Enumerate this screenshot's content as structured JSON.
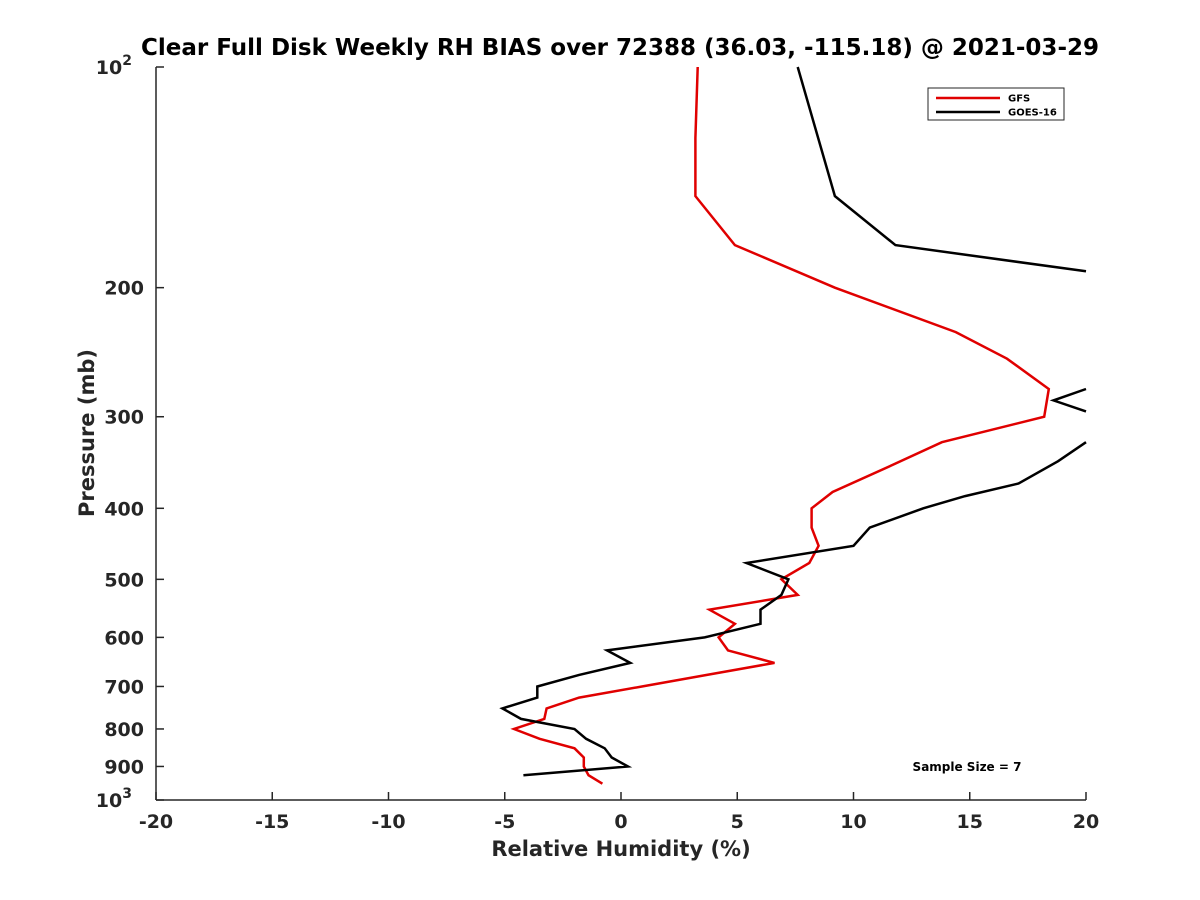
{
  "chart_data": {
    "type": "line",
    "title": "Clear Full Disk Weekly RH BIAS over 72388 (36.03, -115.18) @ 2021-03-29",
    "xlabel": "Relative Humidity (%)",
    "ylabel": "Pressure (mb)",
    "xlim": [
      -20,
      20
    ],
    "ylim": [
      100,
      1000
    ],
    "y_scale": "log",
    "y_reversed": true,
    "grid": false,
    "legend_position": "top-right",
    "x_ticks": [
      "-20",
      "-15",
      "-10",
      "-5",
      "0",
      "5",
      "10",
      "15",
      "20"
    ],
    "y_ticks": [
      {
        "value": 100,
        "base": "10",
        "exp": "2"
      },
      {
        "value": 200,
        "label": "200"
      },
      {
        "value": 300,
        "label": "300"
      },
      {
        "value": 400,
        "label": "400"
      },
      {
        "value": 500,
        "label": "500"
      },
      {
        "value": 600,
        "label": "600"
      },
      {
        "value": 700,
        "label": "700"
      },
      {
        "value": 800,
        "label": "800"
      },
      {
        "value": 900,
        "label": "900"
      },
      {
        "value": 1000,
        "base": "10",
        "exp": "3"
      }
    ],
    "series": [
      {
        "name": "GFS",
        "color": "#e00000",
        "points": [
          [
            3.3,
            100
          ],
          [
            3.2,
            125
          ],
          [
            3.2,
            150
          ],
          [
            4.9,
            175
          ],
          [
            9.2,
            200
          ],
          [
            14.4,
            230
          ],
          [
            16.6,
            250
          ],
          [
            18.4,
            275
          ],
          [
            18.2,
            300
          ],
          [
            13.8,
            325
          ],
          [
            11.6,
            350
          ],
          [
            9.1,
            380
          ],
          [
            8.2,
            400
          ],
          [
            8.2,
            425
          ],
          [
            8.5,
            450
          ],
          [
            8.1,
            475
          ],
          [
            6.9,
            500
          ],
          [
            7.6,
            525
          ],
          [
            3.8,
            550
          ],
          [
            4.9,
            575
          ],
          [
            4.2,
            600
          ],
          [
            4.6,
            625
          ],
          [
            6.6,
            650
          ],
          [
            3.7,
            675
          ],
          [
            0.9,
            700
          ],
          [
            -1.8,
            725
          ],
          [
            -3.2,
            750
          ],
          [
            -3.3,
            775
          ],
          [
            -4.6,
            800
          ],
          [
            -3.5,
            825
          ],
          [
            -2.0,
            850
          ],
          [
            -1.6,
            875
          ],
          [
            -1.6,
            900
          ],
          [
            -1.4,
            925
          ],
          [
            -0.8,
            950
          ]
        ]
      },
      {
        "name": "GOES-16",
        "color": "#000000",
        "segments": [
          [
            [
              7.6,
              100
            ],
            [
              9.2,
              150
            ],
            [
              11.8,
              175
            ],
            [
              20.0,
              190
            ]
          ],
          [
            [
              20.0,
              275
            ],
            [
              18.6,
              285
            ],
            [
              20.0,
              295
            ]
          ],
          [
            [
              20.0,
              325
            ],
            [
              18.8,
              345
            ],
            [
              17.1,
              370
            ],
            [
              14.8,
              385
            ],
            [
              13.0,
              400
            ],
            [
              10.7,
              425
            ],
            [
              10.0,
              450
            ],
            [
              5.4,
              475
            ],
            [
              7.2,
              500
            ],
            [
              6.9,
              525
            ],
            [
              6.0,
              550
            ],
            [
              6.0,
              575
            ],
            [
              3.6,
              600
            ],
            [
              -0.6,
              625
            ],
            [
              0.4,
              650
            ],
            [
              -1.8,
              675
            ],
            [
              -3.6,
              700
            ],
            [
              -3.6,
              725
            ],
            [
              -5.1,
              750
            ],
            [
              -4.3,
              775
            ],
            [
              -2.0,
              800
            ],
            [
              -1.5,
              825
            ],
            [
              -0.7,
              850
            ],
            [
              -0.4,
              875
            ],
            [
              0.3,
              900
            ],
            [
              -4.2,
              925
            ]
          ]
        ]
      }
    ],
    "annotations": [
      "Sample Size = 7"
    ]
  }
}
